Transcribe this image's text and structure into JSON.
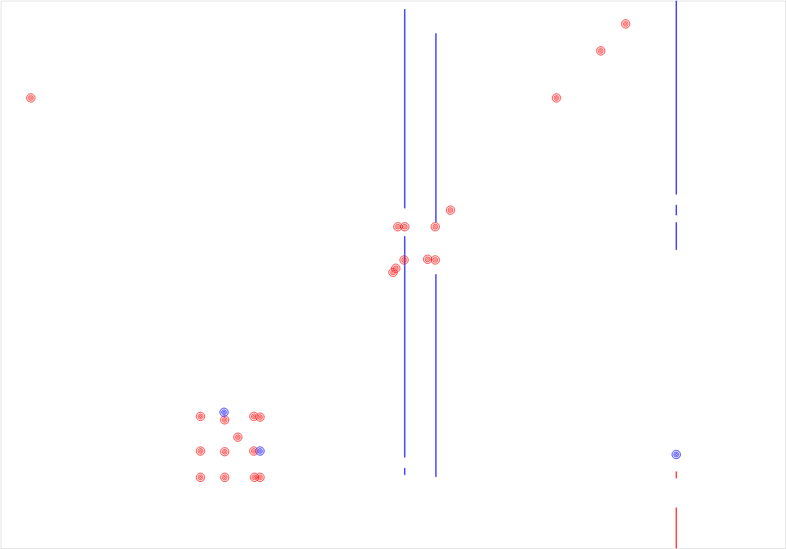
{
  "chart_data": {
    "type": "contour",
    "tick_labels": false,
    "xlim": [
      0,
      1133
    ],
    "ylim": [
      791,
      0
    ],
    "peaks": {
      "x": [
        43,
        902,
        866,
        802,
        649,
        583,
        627,
        573,
        582,
        627,
        616,
        566,
        570,
        288,
        323,
        365,
        374,
        322,
        342,
        288,
        323,
        365,
        374,
        288,
        323,
        366,
        374,
        975
      ],
      "y": [
        140,
        33,
        72,
        140,
        302,
        326,
        326,
        326,
        374,
        374,
        373,
        392,
        386,
        600,
        605,
        600,
        601,
        594,
        630,
        650,
        651,
        650,
        650,
        688,
        688,
        688,
        688,
        655
      ],
      "colors": [
        "red",
        "red",
        "red",
        "red",
        "red",
        "red",
        "red",
        "red",
        "red",
        "red",
        "red",
        "red",
        "red",
        "red",
        "red",
        "red",
        "red",
        "blue",
        "red",
        "red",
        "red",
        "red",
        "blue",
        "red",
        "red",
        "red",
        "red",
        "blue"
      ]
    },
    "streaks": {
      "x": [
        583,
        583,
        583,
        628,
        628,
        975,
        975,
        975,
        975,
        975
      ],
      "y1": [
        12,
        340,
        675,
        47,
        395,
        0,
        295,
        320,
        680,
        732
      ],
      "y2": [
        300,
        660,
        685,
        320,
        688,
        280,
        310,
        360,
        690,
        791
      ],
      "colors": [
        "blue",
        "blue",
        "blue",
        "blue",
        "blue",
        "blue",
        "blue",
        "blue",
        "red",
        "red"
      ]
    }
  }
}
